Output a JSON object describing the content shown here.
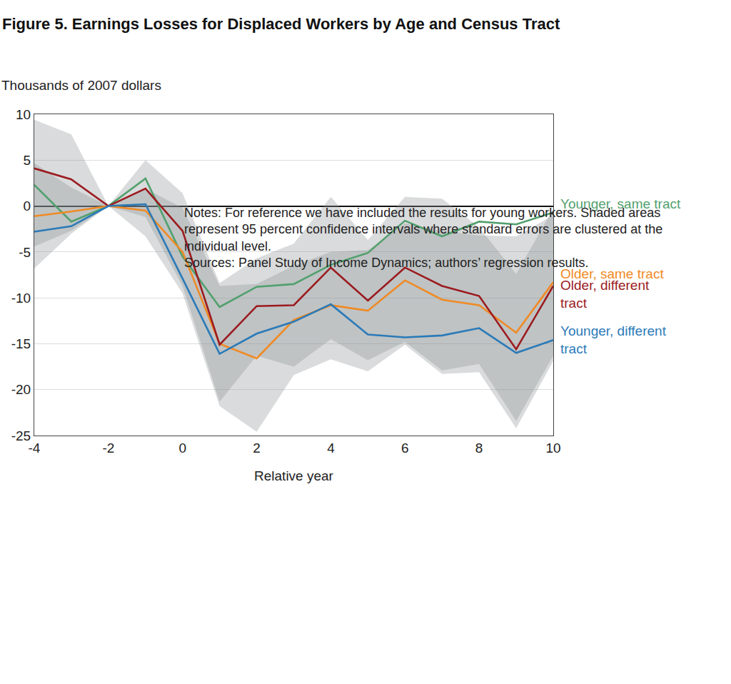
{
  "chart_data": {
    "type": "line",
    "title": "Figure 5. Earnings Losses for Displaced Workers by Age and Census Tract",
    "y_label": "Thousands of 2007 dollars",
    "x_label": "Relative year",
    "notes": "Notes: For reference we have included the results for young workers. Shaded areas represent 95 percent confidence intervals where standard errors are clustered at the individual level.",
    "sources": "Sources: Panel Study of Income Dynamics; authors’ regression results.",
    "x": [
      -4,
      -3,
      -2,
      -1,
      0,
      1,
      2,
      3,
      4,
      5,
      6,
      7,
      8,
      9,
      10
    ],
    "series": [
      {
        "name": "Younger, same tract",
        "color": "#52a06e",
        "values": [
          2.3,
          -1.7,
          0,
          3.0,
          -5.5,
          -11.0,
          -8.8,
          -8.5,
          -6.4,
          -5.1,
          -1.6,
          -3.3,
          -1.7,
          -2.0,
          -0.7
        ]
      },
      {
        "name": "Older, same tract",
        "color": "#f08a24",
        "values": [
          -1.1,
          -0.6,
          0,
          -0.5,
          -5.0,
          -15.0,
          -16.6,
          -12.4,
          -10.8,
          -11.4,
          -8.1,
          -10.2,
          -10.8,
          -13.8,
          -8.3
        ],
        "ci_lower": [
          -4.4,
          -2.7,
          0,
          -1.2,
          -8.7,
          -21.3,
          -16.3,
          -17.5,
          -14.5,
          -16.8,
          -14.8,
          -17.9,
          -17.2,
          -23.4,
          -16.3
        ],
        "ci_upper": [
          4.7,
          2.0,
          0,
          1.9,
          -0.2,
          -8.7,
          -8.5,
          -6.5,
          -5.0,
          -4.8,
          -1.9,
          -2.7,
          -3.2,
          -3.3,
          -1.0
        ]
      },
      {
        "name": "Older, different tract",
        "color": "#9b1b1f",
        "values": [
          4.1,
          2.9,
          0,
          1.9,
          -2.7,
          -15.1,
          -10.9,
          -10.8,
          -6.7,
          -10.3,
          -6.7,
          -8.7,
          -9.8,
          -15.6,
          -8.7
        ],
        "ci_lower": [
          -6.8,
          -3.0,
          0,
          -3.3,
          -9.5,
          -21.8,
          -24.6,
          -18.4,
          -16.7,
          -18.0,
          -15.1,
          -18.3,
          -18.1,
          -24.2,
          -16.9
        ],
        "ci_upper": [
          9.4,
          7.8,
          0,
          5.0,
          1.4,
          -8.4,
          -5.7,
          -4.1,
          1.0,
          -3.7,
          1.0,
          0.8,
          -2.3,
          -7.4,
          -0.3
        ]
      },
      {
        "name": "Younger, different tract",
        "color": "#2a7ab8",
        "values": [
          -2.8,
          -2.2,
          0,
          0.2,
          -7.9,
          -16.1,
          -13.9,
          -12.6,
          -10.7,
          -14.0,
          -14.3,
          -14.1,
          -13.3,
          -16.0,
          -14.6
        ]
      }
    ],
    "xlim": [
      -4,
      10
    ],
    "xticks": [
      -4,
      -2,
      0,
      2,
      4,
      6,
      8,
      10
    ],
    "ylim": [
      -25,
      10
    ],
    "yticks": [
      -25,
      -20,
      -15,
      -10,
      -5,
      0,
      5,
      10
    ],
    "grid": true
  }
}
